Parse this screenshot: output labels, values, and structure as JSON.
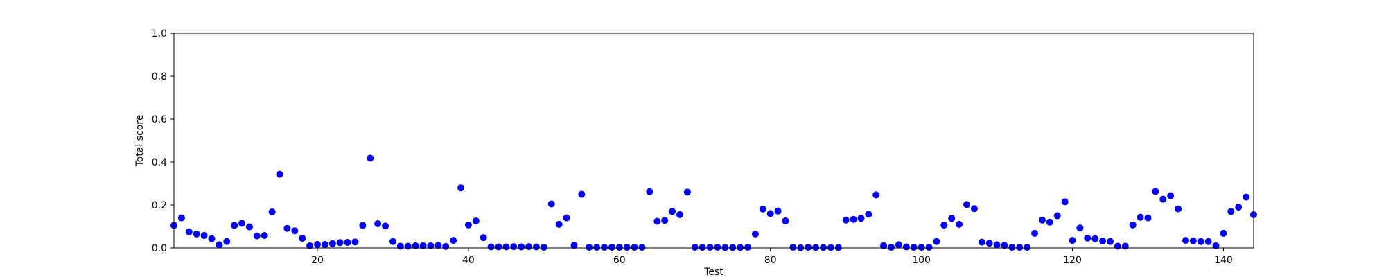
{
  "chart_data": {
    "type": "scatter",
    "title": "",
    "xlabel": "Test",
    "ylabel": "Total score",
    "xlim": [
      1,
      144
    ],
    "ylim": [
      0,
      1.0
    ],
    "x_ticks": [
      20,
      40,
      60,
      80,
      100,
      120,
      140
    ],
    "y_ticks": [
      "0.0",
      "0.2",
      "0.4",
      "0.6",
      "0.8",
      "1.0"
    ],
    "grid": false,
    "legend": "none",
    "marker_color": "#0000ff",
    "series": [
      {
        "x": [
          1,
          2,
          3,
          4,
          5,
          6,
          7,
          8,
          9,
          10,
          11,
          12,
          13,
          14,
          15,
          16,
          17,
          18,
          19,
          20,
          21,
          22,
          23,
          24,
          25,
          26,
          27,
          28,
          29,
          30,
          31,
          32,
          33,
          34,
          35,
          36,
          37,
          38,
          39,
          40,
          41,
          42,
          43,
          44,
          45,
          46,
          47,
          48,
          49,
          50,
          51,
          52,
          53,
          54,
          55,
          56,
          57,
          58,
          59,
          60,
          61,
          62,
          63,
          64,
          65,
          66,
          67,
          68,
          69,
          70,
          71,
          72,
          73,
          74,
          75,
          76,
          77,
          78,
          79,
          80,
          81,
          82,
          83,
          84,
          85,
          86,
          87,
          88,
          89,
          90,
          91,
          92,
          93,
          94,
          95,
          96,
          97,
          98,
          99,
          100,
          101,
          102,
          103,
          104,
          105,
          106,
          107,
          108,
          109,
          110,
          111,
          112,
          113,
          114,
          115,
          116,
          117,
          118,
          119,
          120,
          121,
          122,
          123,
          124,
          125,
          126,
          127,
          128,
          129,
          130,
          131,
          132,
          133,
          134,
          135,
          136,
          137,
          138,
          139,
          140,
          141,
          142,
          143,
          144
        ],
        "y": [
          0.105,
          0.14,
          0.075,
          0.065,
          0.058,
          0.043,
          0.015,
          0.03,
          0.105,
          0.115,
          0.098,
          0.056,
          0.058,
          0.168,
          0.343,
          0.091,
          0.08,
          0.045,
          0.01,
          0.016,
          0.016,
          0.02,
          0.025,
          0.026,
          0.028,
          0.105,
          0.418,
          0.113,
          0.102,
          0.03,
          0.008,
          0.008,
          0.01,
          0.01,
          0.01,
          0.012,
          0.007,
          0.035,
          0.28,
          0.107,
          0.126,
          0.048,
          0.005,
          0.005,
          0.005,
          0.006,
          0.005,
          0.006,
          0.005,
          0.003,
          0.205,
          0.11,
          0.14,
          0.012,
          0.25,
          0.003,
          0.003,
          0.003,
          0.003,
          0.003,
          0.003,
          0.003,
          0.003,
          0.262,
          0.124,
          0.128,
          0.17,
          0.155,
          0.26,
          0.003,
          0.003,
          0.003,
          0.003,
          0.002,
          0.002,
          0.002,
          0.003,
          0.065,
          0.181,
          0.16,
          0.172,
          0.126,
          0.003,
          0.001,
          0.003,
          0.002,
          0.002,
          0.002,
          0.002,
          0.13,
          0.133,
          0.138,
          0.157,
          0.247,
          0.01,
          0.003,
          0.015,
          0.005,
          0.003,
          0.003,
          0.003,
          0.03,
          0.106,
          0.138,
          0.11,
          0.202,
          0.183,
          0.027,
          0.022,
          0.015,
          0.012,
          0.003,
          0.003,
          0.003,
          0.068,
          0.13,
          0.12,
          0.15,
          0.215,
          0.035,
          0.093,
          0.046,
          0.043,
          0.032,
          0.03,
          0.008,
          0.008,
          0.107,
          0.143,
          0.14,
          0.263,
          0.227,
          0.243,
          0.182,
          0.035,
          0.033,
          0.03,
          0.03,
          0.01,
          0.068,
          0.17,
          0.19,
          0.237,
          0.155
        ]
      }
    ]
  }
}
